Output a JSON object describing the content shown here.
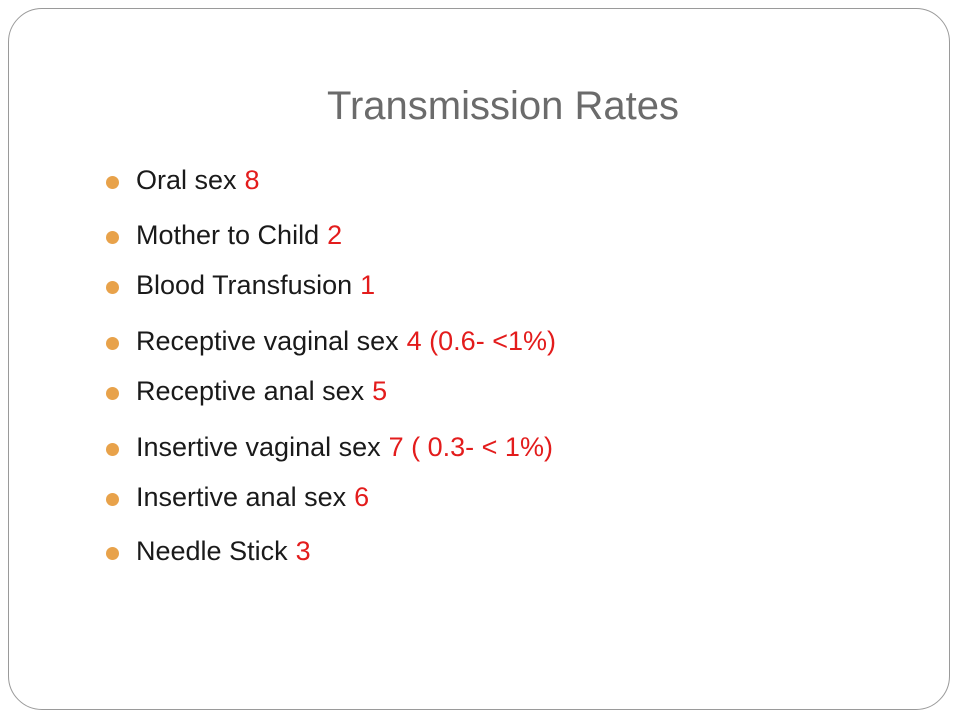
{
  "title": "Transmission Rates",
  "items": [
    {
      "label": "Oral sex",
      "rank": "8"
    },
    {
      "label": "Mother to Child",
      "rank": "2"
    },
    {
      "label": "Blood Transfusion",
      "rank": "1"
    },
    {
      "label": "Receptive vaginal sex",
      "rank": "4 (0.6- <1%)"
    },
    {
      "label": "Receptive anal sex",
      "rank": "5"
    },
    {
      "label": "Insertive vaginal sex",
      "rank": "7 ( 0.3- < 1%)"
    },
    {
      "label": "Insertive anal sex",
      "rank": "6"
    },
    {
      "label": "Needle Stick",
      "rank": "3"
    }
  ]
}
